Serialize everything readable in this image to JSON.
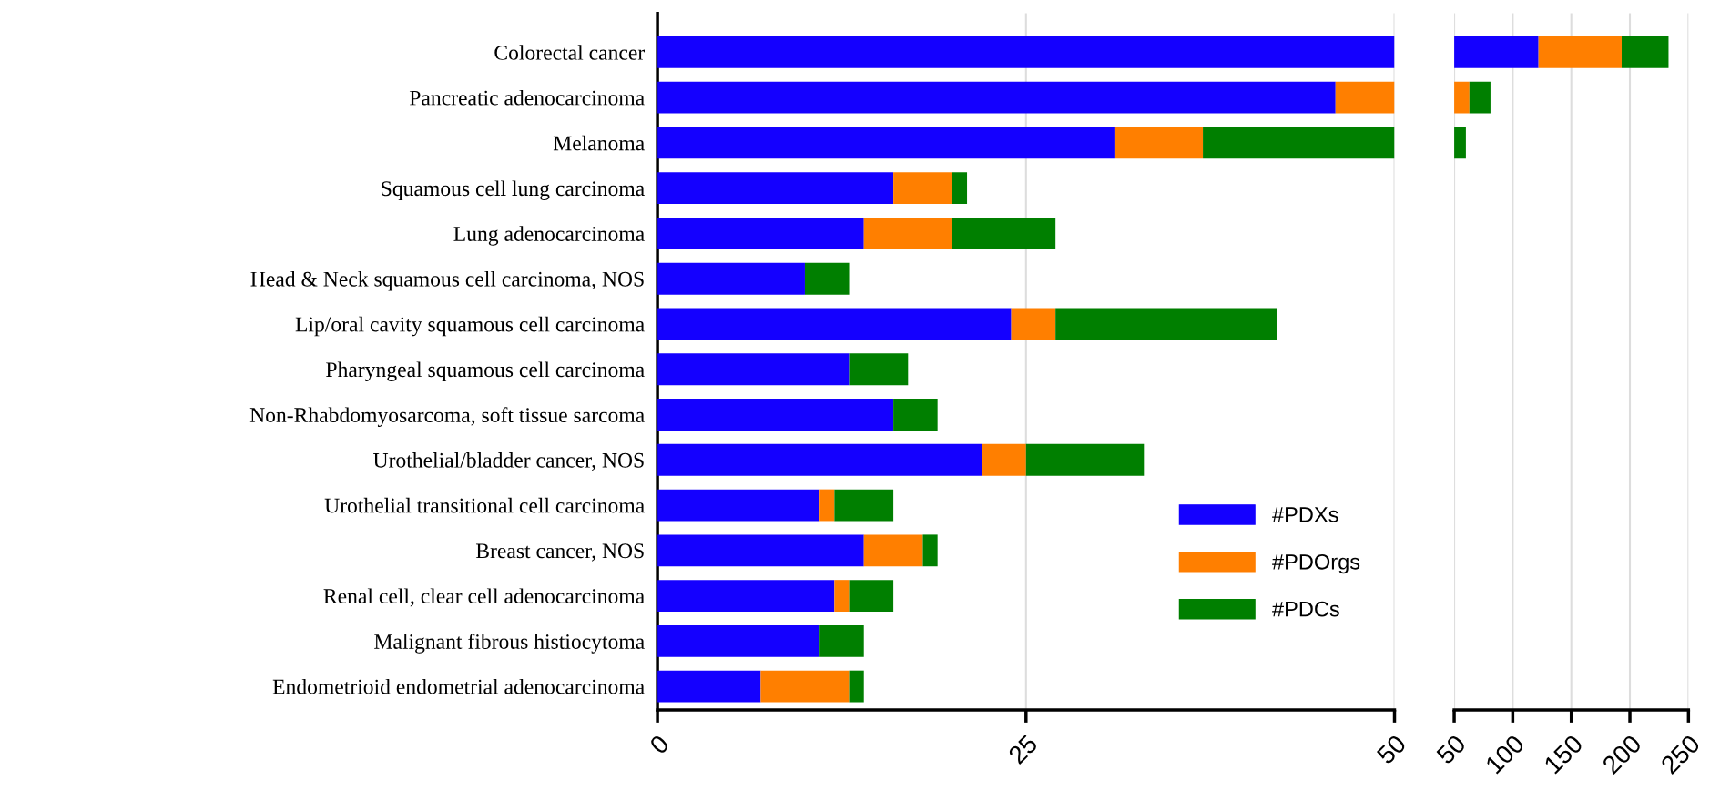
{
  "chart_data": [
    {
      "type": "bar",
      "orientation": "horizontal",
      "stacked": true,
      "categories": [
        "Colorectal cancer",
        "Pancreatic adenocarcinoma",
        "Melanoma",
        "Squamous cell lung carcinoma",
        "Lung adenocarcinoma",
        "Head & Neck squamous cell carcinoma, NOS",
        "Lip/oral cavity squamous cell carcinoma",
        "Pharyngeal squamous cell carcinoma",
        "Non-Rhabdomyosarcoma, soft tissue sarcoma",
        "Urothelial/bladder cancer, NOS",
        "Urothelial transitional cell carcinoma",
        "Breast cancer, NOS",
        "Renal cell, clear cell adenocarcinoma",
        "Malignant fibrous histiocytoma",
        "Endometrioid endometrial adenocarcinoma"
      ],
      "series": [
        {
          "name": "#PDXs",
          "color": "#1400ff",
          "values": [
            50,
            46,
            31,
            16,
            14,
            10,
            24,
            13,
            16,
            22,
            11,
            14,
            12,
            11,
            7
          ]
        },
        {
          "name": "#PDOrgs",
          "color": "#ff7f00",
          "values": [
            null,
            4,
            6,
            4,
            6,
            null,
            3,
            null,
            null,
            3,
            1,
            4,
            1,
            null,
            6
          ]
        },
        {
          "name": "#PDCs",
          "color": "#007f00",
          "values": [
            null,
            null,
            13,
            1,
            7,
            3,
            15,
            4,
            3,
            8,
            4,
            1,
            3,
            3,
            1
          ]
        }
      ],
      "xlim": [
        0,
        50
      ],
      "xticks": [
        0,
        25,
        50
      ],
      "grid": "x",
      "legend": "bottom right"
    },
    {
      "type": "bar",
      "orientation": "horizontal",
      "categories": [
        null,
        null,
        null,
        null,
        null,
        null,
        null,
        null,
        null,
        null,
        null,
        null,
        null,
        null,
        null
      ],
      "series": [
        {
          "color": "#1400ff",
          "base": [
            50,
            null,
            null,
            null,
            null,
            null,
            null,
            null,
            null,
            null,
            null,
            null,
            null,
            null,
            null
          ],
          "values": [
            72,
            null,
            null,
            null,
            null,
            null,
            null,
            null,
            null,
            null,
            null,
            null,
            null,
            null,
            null
          ]
        },
        {
          "color": "#ff7f00",
          "base": [
            122,
            50,
            null,
            null,
            null,
            null,
            null,
            null,
            null,
            null,
            null,
            null,
            null,
            null,
            null
          ],
          "values": [
            71,
            13,
            null,
            null,
            null,
            null,
            null,
            null,
            null,
            null,
            null,
            null,
            null,
            null,
            null
          ]
        },
        {
          "color": "#007f00",
          "base": [
            193,
            63,
            50,
            null,
            null,
            null,
            null,
            null,
            null,
            null,
            null,
            null,
            null,
            null,
            null
          ],
          "values": [
            40,
            18,
            10,
            null,
            null,
            null,
            null,
            null,
            null,
            null,
            null,
            null,
            null,
            null,
            null
          ]
        }
      ],
      "xlim": [
        50,
        250
      ],
      "xticks": [
        50,
        100,
        150,
        200,
        250
      ],
      "grid": "x",
      "tick_labels": "x"
    }
  ]
}
